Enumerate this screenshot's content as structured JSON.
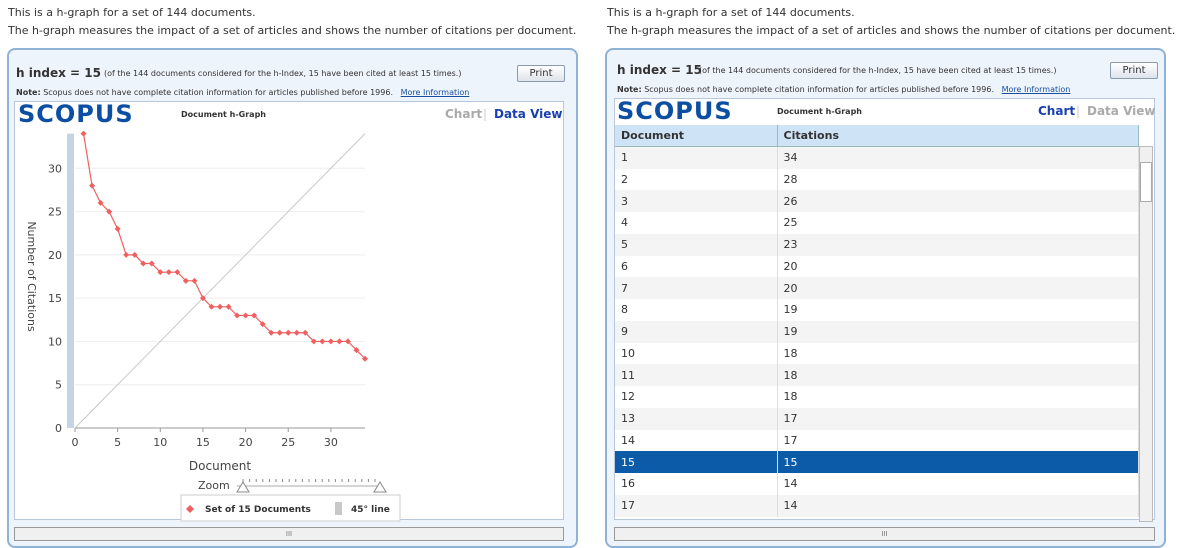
{
  "intro": {
    "line1": "This is a h-graph for a set of 144 documents.",
    "line2": "The h-graph measures the impact of a set of articles and shows the number of citations per document."
  },
  "header": {
    "h_index": "h index = 15",
    "h_index_note": "(of the 144 documents considered for the h-Index, 15 have been cited at least 15 times.)",
    "print": "Print",
    "note_label": "Note:",
    "note_text": "Scopus does not have complete citation information for articles published before 1996.",
    "more_info": "More Information",
    "logo": "SCOPUS",
    "graph_title": "Document h-Graph",
    "tab_chart": "Chart",
    "tab_separator": "|",
    "tab_data": "Data View"
  },
  "chart": {
    "type": "line",
    "xlabel": "Document",
    "ylabel": "Number of Citations",
    "x": [
      1,
      2,
      3,
      4,
      5,
      6,
      7,
      8,
      9,
      10,
      11,
      12,
      13,
      14,
      15,
      16,
      17,
      18,
      19,
      20,
      21,
      22,
      23,
      24,
      25,
      26,
      27,
      28,
      29,
      30,
      31,
      32,
      33,
      34
    ],
    "series": [
      {
        "name": "Set of 15 Documents",
        "color": "#f06060",
        "values": [
          34,
          28,
          26,
          25,
          23,
          20,
          20,
          19,
          19,
          18,
          18,
          18,
          17,
          17,
          15,
          14,
          14,
          14,
          13,
          13,
          13,
          12,
          11,
          11,
          11,
          11,
          11,
          10,
          10,
          10,
          10,
          10,
          9,
          8
        ]
      }
    ],
    "reference_line": {
      "name": "45° line",
      "color": "#c8c8c8"
    },
    "xlim": [
      0,
      34
    ],
    "ylim": [
      0,
      35
    ],
    "xticks": [
      0,
      5,
      10,
      15,
      20,
      25,
      30
    ],
    "yticks": [
      0,
      5,
      10,
      15,
      20,
      25,
      30
    ],
    "grid": true,
    "zoom_label": "Zoom"
  },
  "table": {
    "columns": [
      "Document",
      "Citations"
    ],
    "rows": [
      [
        1,
        34
      ],
      [
        2,
        28
      ],
      [
        3,
        26
      ],
      [
        4,
        25
      ],
      [
        5,
        23
      ],
      [
        6,
        20
      ],
      [
        7,
        20
      ],
      [
        8,
        19
      ],
      [
        9,
        19
      ],
      [
        10,
        18
      ],
      [
        11,
        18
      ],
      [
        12,
        18
      ],
      [
        13,
        17
      ],
      [
        14,
        17
      ],
      [
        15,
        15
      ],
      [
        16,
        14
      ],
      [
        17,
        14
      ]
    ],
    "selected_row": 14
  },
  "scrollbar_grip": "III"
}
